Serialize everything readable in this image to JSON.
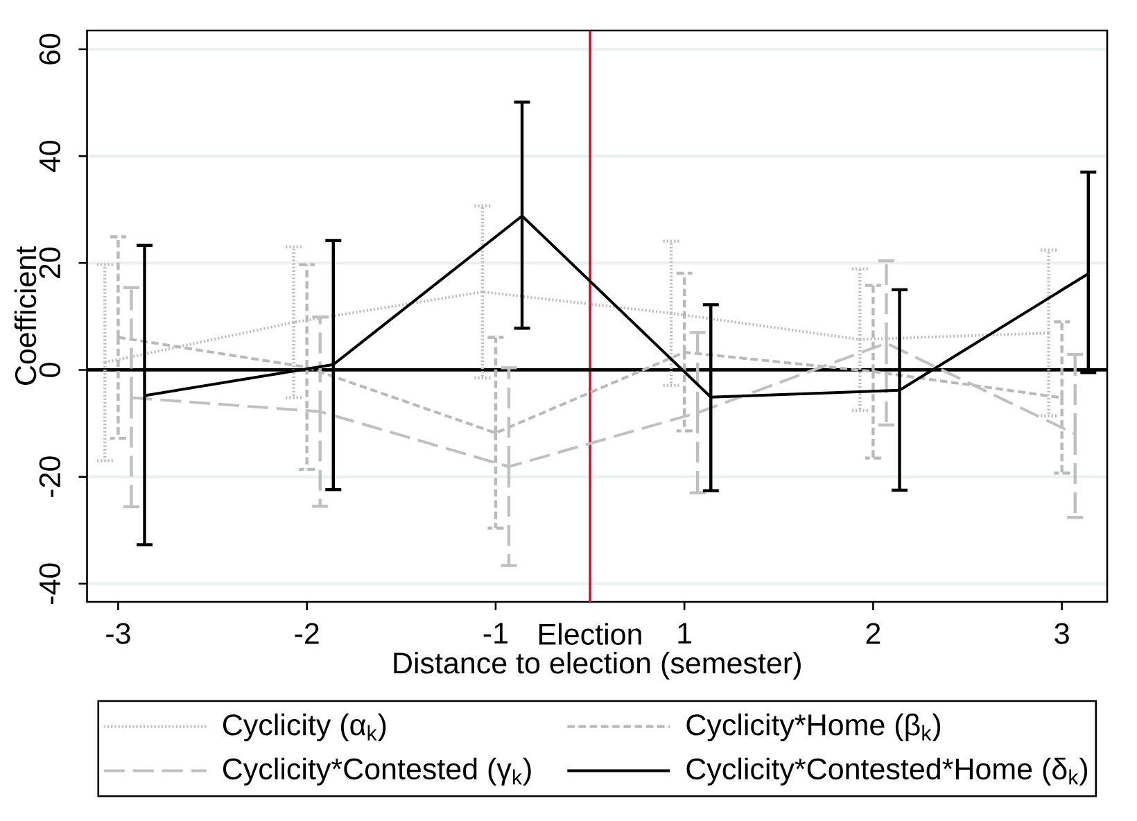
{
  "chart_data": {
    "type": "line",
    "xlabel": "Distance to election (semester)",
    "ylabel": "Coefficient",
    "categories": [
      "-3",
      null,
      "-2",
      null,
      "-1",
      "Election",
      "1",
      null,
      "2",
      null,
      "3"
    ],
    "ylim": [
      -43.4,
      63.5
    ],
    "yticks": [
      -40,
      -20,
      0,
      20,
      40,
      60
    ],
    "grid": "y",
    "legend": "bottom",
    "ref_lines": [
      {
        "axis": "x",
        "value": "Election",
        "color": "#c8102e"
      },
      {
        "axis": "y",
        "value": 0,
        "color": "#000000"
      }
    ],
    "series": [
      {
        "name": "Cyclicity (α$_{k}$)",
        "color": "#bdbdbd",
        "line_style": "dotted",
        "values": [
          1.4,
          null,
          8.9,
          null,
          14.6,
          null,
          10.6,
          null,
          5.7,
          null,
          6.9
        ],
        "errors": [
          [
            -17.0,
            19.7
          ],
          null,
          [
            -5.2,
            23.0
          ],
          null,
          [
            -1.5,
            30.7
          ],
          null,
          [
            -2.9,
            24.1
          ],
          null,
          [
            -7.6,
            18.9
          ],
          null,
          [
            -8.6,
            22.4
          ]
        ]
      },
      {
        "name": "Cyclicity*Home (β$_{k}$)",
        "color": "#b9b9b9",
        "line_style": "dashed",
        "values": [
          6.1,
          null,
          0.5,
          null,
          -11.8,
          null,
          3.3,
          null,
          -0.3,
          null,
          -5.2
        ],
        "errors": [
          [
            -12.8,
            24.9
          ],
          null,
          [
            -18.6,
            19.7
          ],
          null,
          [
            -29.6,
            6.1
          ],
          null,
          [
            -11.4,
            18.1
          ],
          null,
          [
            -16.5,
            15.8
          ],
          null,
          [
            -19.3,
            9.0
          ]
        ]
      },
      {
        "name": "Cyclicity*Contested (γ$_{k}$)",
        "color": "#c0c0c0",
        "line_style": "dashed",
        "values": [
          -5.2,
          null,
          -7.8,
          null,
          -18.1,
          null,
          -8.0,
          null,
          5.0,
          null,
          -12.0
        ],
        "errors": [
          [
            -25.6,
            15.4
          ],
          null,
          [
            -25.5,
            9.9
          ],
          null,
          [
            -36.6,
            0.4
          ],
          null,
          [
            -23.0,
            7.0
          ],
          null,
          [
            -10.3,
            20.4
          ],
          null,
          [
            -27.6,
            2.9
          ]
        ]
      },
      {
        "name": "Cyclicity*Contested*Home (δ$_{k}$)",
        "color": "#000000",
        "line_style": "solid",
        "values": [
          -4.8,
          null,
          1.0,
          null,
          28.8,
          null,
          -5.1,
          null,
          -3.8,
          null,
          18.0
        ],
        "errors": [
          [
            -32.7,
            23.3
          ],
          null,
          [
            -22.4,
            24.2
          ],
          null,
          [
            7.8,
            50.1
          ],
          null,
          [
            -22.6,
            12.2
          ],
          null,
          [
            -22.5,
            15.0
          ],
          null,
          [
            -0.5,
            37.0
          ]
        ]
      }
    ]
  }
}
